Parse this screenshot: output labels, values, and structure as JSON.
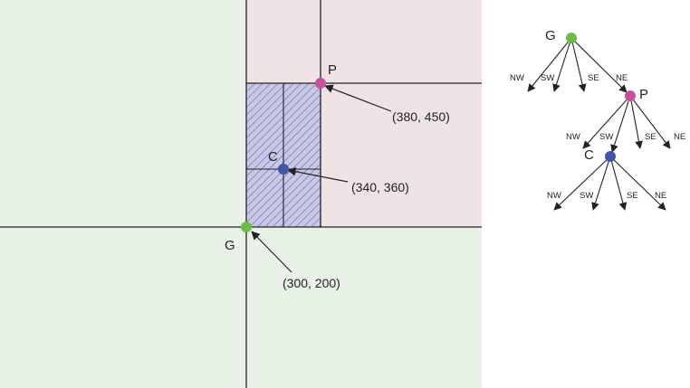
{
  "plane": {
    "points": [
      {
        "id": "G",
        "label": "G",
        "coord_label": "(300, 200)",
        "color": "#6cbd45"
      },
      {
        "id": "P",
        "label": "P",
        "coord_label": "(380, 450)",
        "color": "#c9509a"
      },
      {
        "id": "C",
        "label": "C",
        "coord_label": "(340, 360)",
        "color": "#3f56a6"
      }
    ],
    "colors": {
      "outer_region": "#e9f2e7",
      "ne_region": "#f0e3e6",
      "hatched_region": "#c8c8e6",
      "hatch_line": "#6f6fb0",
      "lines": "#222222"
    }
  },
  "tree": {
    "nodes": [
      {
        "id": "G",
        "label": "G",
        "color": "#6cbd45"
      },
      {
        "id": "P",
        "label": "P",
        "color": "#c9509a"
      },
      {
        "id": "C",
        "label": "C",
        "color": "#3f56a6"
      }
    ],
    "edge_labels": {
      "G": [
        "NW",
        "SW",
        "SE",
        "NE"
      ],
      "P": [
        "NW",
        "SW",
        "SE",
        "NE"
      ],
      "C": [
        "NW",
        "SW",
        "SE",
        "NE"
      ]
    }
  }
}
